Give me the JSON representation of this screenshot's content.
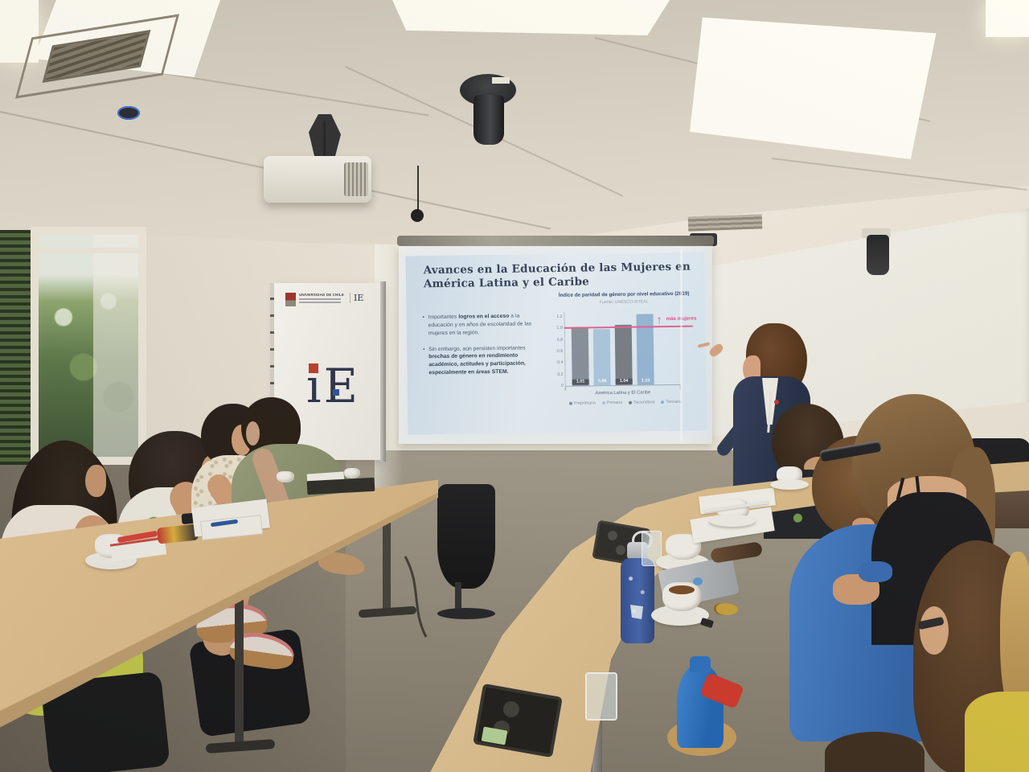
{
  "slide": {
    "title": "Avances en la Educación de las Mujeres en América Latina y el Caribe",
    "bullets": [
      {
        "marker": "•",
        "pre": "Importantes ",
        "bold": "logros en el acceso",
        "post": " a la educación y en años de escolaridad de las mujeres en la región."
      },
      {
        "marker": "•",
        "pre": "Sin embargo, aún persisten importantes ",
        "bold": "brechas de género en rendimiento académico, actitudes y participación, especialmente en áreas STEM.",
        "post": ""
      }
    ]
  },
  "chart_data": {
    "type": "bar",
    "title": "Índice de paridad de género por nivel educativo (2019)",
    "source": "Fuente: UNESCO-SITEAL",
    "categories": [
      "Preprimaria",
      "Primaria",
      "Secundaria",
      "Terciaria"
    ],
    "values": [
      1.01,
      0.98,
      1.04,
      1.23
    ],
    "value_labels": [
      "1.01",
      "0.98",
      "1.04",
      "1.23"
    ],
    "group_label": "América Latina y El Caribe",
    "annotation": "más mujeres",
    "annotation_arrow": "↑",
    "reference_line": 1.0,
    "ylim": [
      0,
      1.2
    ],
    "ytick_values": [
      0,
      0.2,
      0.4,
      0.6,
      0.8,
      1.0,
      1.2
    ],
    "ytick_labels": [
      "0",
      "0.2",
      "0.4",
      "0.6",
      "0.8",
      "1.0",
      "1.2"
    ],
    "bar_colors": [
      "#85909c",
      "#aac9e2",
      "#767c85",
      "#93b7d7"
    ],
    "label_chip_colors": [
      "#4d555f",
      "none",
      "#4d555f",
      "none"
    ],
    "grid": false,
    "legend_position": "bottom",
    "accent_pink": "#e5478a"
  },
  "banner": {
    "university": "UNIVERSIDAD DE CHILE",
    "logo_top": "IE",
    "logo_main_i": "ı",
    "logo_main_e": "E"
  },
  "scene_colors": {
    "wood_table": "#e0bf8f",
    "wall": "#ece6da",
    "ceiling": "#d8d2c6",
    "slide_background": "#dceaf5",
    "presenter_blazer": "#27324e"
  }
}
